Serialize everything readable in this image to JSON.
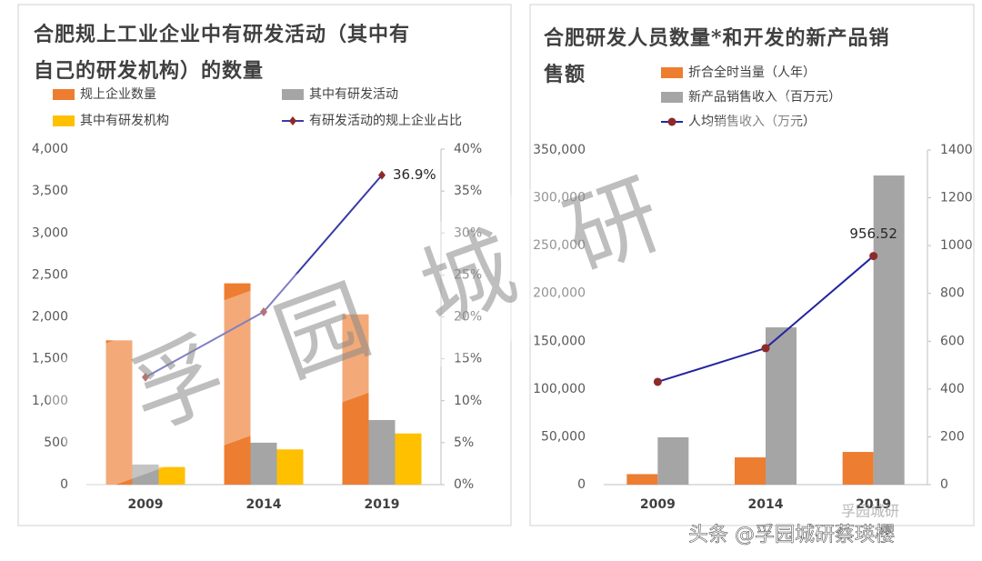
{
  "chart_data": [
    {
      "type": "bar",
      "title": "合肥规上工业企业中有研发活动（其中有自己的研发机构）的数量",
      "categories": [
        "2009",
        "2014",
        "2019"
      ],
      "series": [
        {
          "name": "规上企业数量",
          "type": "bar",
          "color": "#ED7D31",
          "values": [
            1720,
            2400,
            2030
          ]
        },
        {
          "name": "其中有研发活动",
          "type": "bar",
          "color": "#A5A5A5",
          "values": [
            240,
            500,
            770
          ]
        },
        {
          "name": "其中有研发机构",
          "type": "bar",
          "color": "#FFC000",
          "values": [
            210,
            420,
            610
          ]
        },
        {
          "name": "有研发活动的规上企业占比",
          "type": "line",
          "axis": "y2",
          "color": "#3B3BA8",
          "marker_color": "#8E2A2A",
          "marker": "diamond",
          "values": [
            12.8,
            20.6,
            36.9
          ],
          "value_labels": [
            null,
            null,
            "36.9%"
          ]
        }
      ],
      "ylim": [
        0,
        4000
      ],
      "yticks": [
        0,
        {
          "value": 500,
          "label": "500"
        },
        {
          "value": 1000,
          "label": "1,000"
        },
        {
          "value": 1500,
          "label": "1,500"
        },
        {
          "value": 2000,
          "label": "2,000"
        },
        {
          "value": 2500,
          "label": "2,500"
        },
        {
          "value": 3000,
          "label": "3,000"
        },
        {
          "value": 3500,
          "label": "3,500"
        },
        {
          "value": 4000,
          "label": "4,000"
        }
      ],
      "y2lim": [
        0,
        40
      ],
      "y2ticks": [
        {
          "value": 0,
          "label": "0%"
        },
        {
          "value": 5,
          "label": "5%"
        },
        {
          "value": 10,
          "label": "10%"
        },
        {
          "value": 15,
          "label": "15%"
        },
        {
          "value": 20,
          "label": "20%"
        },
        {
          "value": 25,
          "label": "25%"
        },
        {
          "value": 30,
          "label": "30%"
        },
        {
          "value": 35,
          "label": "35%"
        },
        {
          "value": 40,
          "label": "40%"
        }
      ],
      "grid": false
    },
    {
      "type": "bar",
      "title": "合肥研发人员数量*和开发的新产品销售额",
      "categories": [
        "2009",
        "2014",
        "2019"
      ],
      "series": [
        {
          "name": "折合全时当量（人年）",
          "type": "bar",
          "color": "#ED7D31",
          "values": [
            11000,
            28500,
            34200
          ]
        },
        {
          "name": "新产品销售收入（百万元）",
          "type": "bar",
          "color": "#A5A5A5",
          "values": [
            49500,
            164500,
            323400
          ]
        },
        {
          "name": "人均销售收入（万元）",
          "type": "line",
          "axis": "y2",
          "color": "#2424A0",
          "marker_color": "#8E2A2A",
          "marker": "circle",
          "values": [
            430,
            571,
            956.52
          ],
          "value_labels": [
            null,
            null,
            "956.52"
          ]
        }
      ],
      "ylim": [
        0,
        350000
      ],
      "yticks": [
        0,
        {
          "value": 50000,
          "label": "50,000"
        },
        {
          "value": 100000,
          "label": "100,000"
        },
        {
          "value": 150000,
          "label": "150,000"
        },
        {
          "value": 200000,
          "label": "200,000"
        },
        {
          "value": 250000,
          "label": "250,000"
        },
        {
          "value": 300000,
          "label": "300,000"
        },
        {
          "value": 350000,
          "label": "350,000"
        }
      ],
      "y2lim": [
        0,
        1400
      ],
      "y2ticks": [
        0,
        200,
        400,
        600,
        800,
        1000,
        1200,
        1400
      ],
      "grid": false
    }
  ],
  "watermark": "孚园城研",
  "corner_mark": "孚园城研",
  "footer": "头条 @孚园城研蔡瑛樱"
}
